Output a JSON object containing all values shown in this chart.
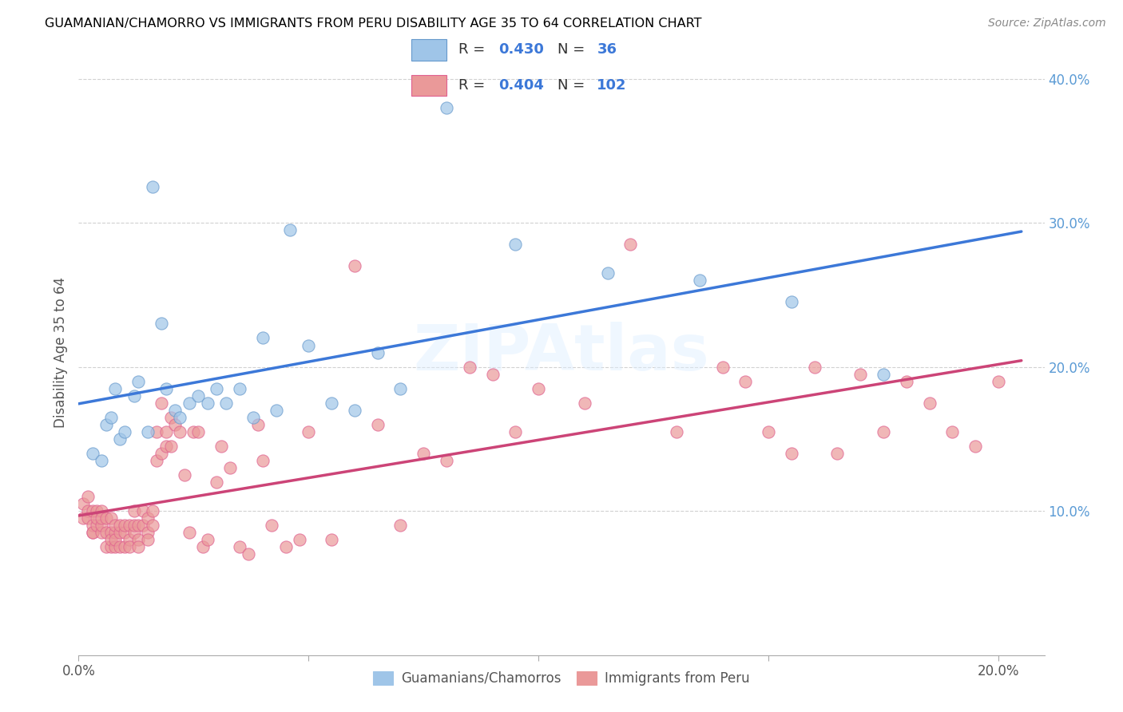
{
  "title": "GUAMANIAN/CHAMORRO VS IMMIGRANTS FROM PERU DISABILITY AGE 35 TO 64 CORRELATION CHART",
  "source": "Source: ZipAtlas.com",
  "ylabel": "Disability Age 35 to 64",
  "xlim": [
    0.0,
    0.21
  ],
  "ylim": [
    0.0,
    0.42
  ],
  "xticks": [
    0.0,
    0.05,
    0.1,
    0.15,
    0.2
  ],
  "xticklabels": [
    "0.0%",
    "",
    "",
    "",
    "20.0%"
  ],
  "yticks": [
    0.1,
    0.2,
    0.3,
    0.4
  ],
  "yticklabels": [
    "10.0%",
    "20.0%",
    "30.0%",
    "40.0%"
  ],
  "ytick_color": "#5b9bd5",
  "xtick_color": "#555555",
  "blue_color": "#9fc5e8",
  "pink_color": "#ea9999",
  "blue_line_color": "#3c78d8",
  "pink_line_color": "#cc4477",
  "blue_R": 0.43,
  "blue_N": 36,
  "pink_R": 0.404,
  "pink_N": 102,
  "legend_label_blue": "Guamanians/Chamorros",
  "legend_label_pink": "Immigrants from Peru",
  "watermark": "ZIPAtlas",
  "blue_scatter_x": [
    0.003,
    0.005,
    0.006,
    0.007,
    0.008,
    0.009,
    0.01,
    0.012,
    0.013,
    0.015,
    0.016,
    0.018,
    0.019,
    0.021,
    0.022,
    0.024,
    0.026,
    0.028,
    0.03,
    0.032,
    0.035,
    0.038,
    0.04,
    0.043,
    0.046,
    0.05,
    0.055,
    0.06,
    0.065,
    0.07,
    0.08,
    0.095,
    0.115,
    0.135,
    0.155,
    0.175
  ],
  "blue_scatter_y": [
    0.14,
    0.135,
    0.16,
    0.165,
    0.185,
    0.15,
    0.155,
    0.18,
    0.19,
    0.155,
    0.325,
    0.23,
    0.185,
    0.17,
    0.165,
    0.175,
    0.18,
    0.175,
    0.185,
    0.175,
    0.185,
    0.165,
    0.22,
    0.17,
    0.295,
    0.215,
    0.175,
    0.17,
    0.21,
    0.185,
    0.38,
    0.285,
    0.265,
    0.26,
    0.245,
    0.195
  ],
  "pink_scatter_x": [
    0.001,
    0.001,
    0.002,
    0.002,
    0.002,
    0.003,
    0.003,
    0.003,
    0.003,
    0.004,
    0.004,
    0.004,
    0.005,
    0.005,
    0.005,
    0.005,
    0.006,
    0.006,
    0.006,
    0.007,
    0.007,
    0.007,
    0.007,
    0.008,
    0.008,
    0.008,
    0.008,
    0.009,
    0.009,
    0.009,
    0.01,
    0.01,
    0.01,
    0.011,
    0.011,
    0.011,
    0.012,
    0.012,
    0.012,
    0.013,
    0.013,
    0.013,
    0.014,
    0.014,
    0.015,
    0.015,
    0.015,
    0.016,
    0.016,
    0.017,
    0.017,
    0.018,
    0.018,
    0.019,
    0.019,
    0.02,
    0.02,
    0.021,
    0.022,
    0.023,
    0.024,
    0.025,
    0.026,
    0.027,
    0.028,
    0.03,
    0.031,
    0.033,
    0.035,
    0.037,
    0.039,
    0.04,
    0.042,
    0.045,
    0.048,
    0.05,
    0.055,
    0.06,
    0.065,
    0.07,
    0.075,
    0.08,
    0.085,
    0.09,
    0.095,
    0.1,
    0.11,
    0.12,
    0.13,
    0.14,
    0.145,
    0.15,
    0.155,
    0.16,
    0.165,
    0.17,
    0.175,
    0.18,
    0.185,
    0.19,
    0.195,
    0.2
  ],
  "pink_scatter_y": [
    0.105,
    0.095,
    0.1,
    0.095,
    0.11,
    0.085,
    0.09,
    0.1,
    0.085,
    0.09,
    0.1,
    0.095,
    0.085,
    0.09,
    0.1,
    0.095,
    0.075,
    0.085,
    0.095,
    0.075,
    0.085,
    0.095,
    0.08,
    0.075,
    0.085,
    0.09,
    0.08,
    0.075,
    0.085,
    0.09,
    0.075,
    0.085,
    0.09,
    0.08,
    0.09,
    0.075,
    0.085,
    0.09,
    0.1,
    0.08,
    0.09,
    0.075,
    0.09,
    0.1,
    0.085,
    0.095,
    0.08,
    0.09,
    0.1,
    0.155,
    0.135,
    0.14,
    0.175,
    0.155,
    0.145,
    0.165,
    0.145,
    0.16,
    0.155,
    0.125,
    0.085,
    0.155,
    0.155,
    0.075,
    0.08,
    0.12,
    0.145,
    0.13,
    0.075,
    0.07,
    0.16,
    0.135,
    0.09,
    0.075,
    0.08,
    0.155,
    0.08,
    0.27,
    0.16,
    0.09,
    0.14,
    0.135,
    0.2,
    0.195,
    0.155,
    0.185,
    0.175,
    0.285,
    0.155,
    0.2,
    0.19,
    0.155,
    0.14,
    0.2,
    0.14,
    0.195,
    0.155,
    0.19,
    0.175,
    0.155,
    0.145,
    0.19
  ]
}
